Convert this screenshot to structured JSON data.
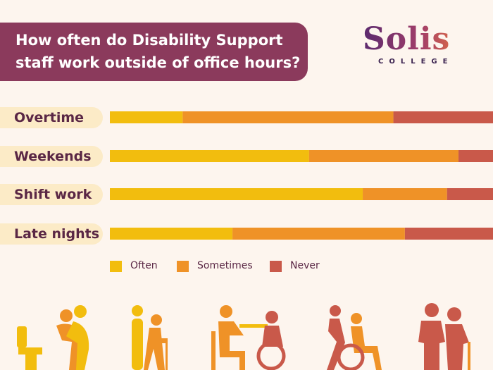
{
  "title": "How often do Disability Support staff work outside of office hours?",
  "title_lines": [
    "How often do Disability Support",
    "staff work outside of office hours?"
  ],
  "logo": {
    "word": "Solis",
    "sub": "COLLEGE"
  },
  "colors": {
    "Often": "#f2bd0e",
    "Sometimes": "#ef9227",
    "Never": "#c9594a",
    "title_bg": "#8b3a5c",
    "background": "#fdf5ee"
  },
  "icons": [
    "toilet-assist-icon",
    "walker-assist-icon",
    "meal-assist-icon",
    "wheelchair-push-icon",
    "elderly-cane-icon"
  ],
  "chart_data": {
    "type": "bar",
    "orientation": "horizontal",
    "stacked": true,
    "unit": "percent",
    "categories": [
      "Overtime",
      "Weekends",
      "Shift work",
      "Late nights"
    ],
    "series": [
      {
        "name": "Often",
        "values": [
          19,
          52,
          66,
          32
        ]
      },
      {
        "name": "Sometimes",
        "values": [
          55,
          39,
          22,
          45
        ]
      },
      {
        "name": "Never",
        "values": [
          26,
          9,
          12,
          23
        ]
      }
    ],
    "xlim": [
      0,
      100
    ],
    "grid": false,
    "legend": "bottom"
  }
}
